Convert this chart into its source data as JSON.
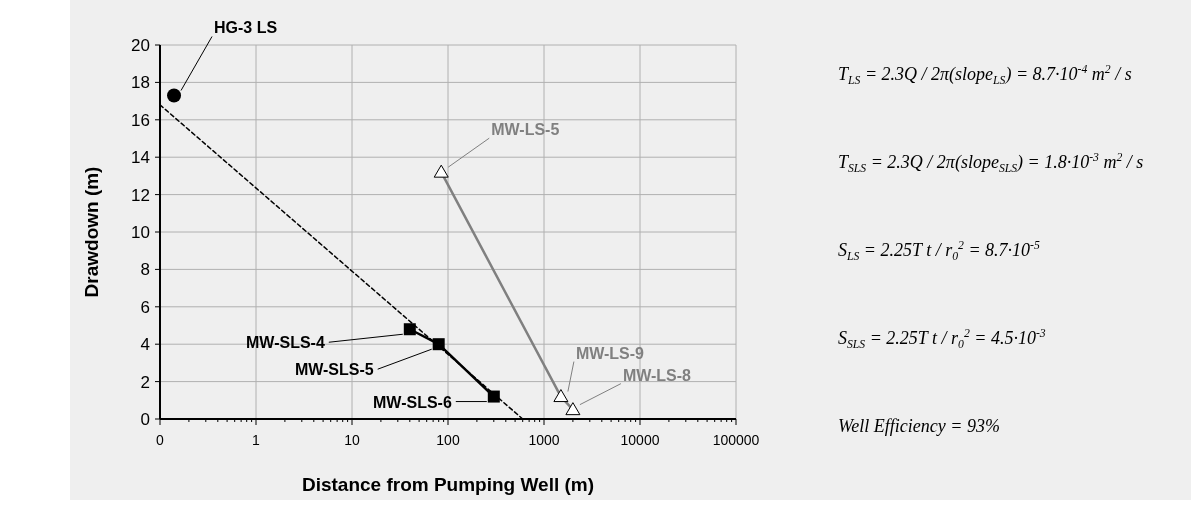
{
  "chart_data": {
    "type": "scatter",
    "xlabel": "Distance from Pumping Well  (m)",
    "ylabel": "Drawdown  (m)",
    "log": "x",
    "xlim": [
      0.1,
      100000
    ],
    "xticks": [
      {
        "value": 0.1,
        "label": "0"
      },
      1,
      10,
      100,
      1000,
      10000,
      100000
    ],
    "ylim": [
      0,
      20
    ],
    "yticks": [
      0,
      2,
      4,
      6,
      8,
      10,
      12,
      14,
      16,
      18,
      20
    ],
    "grid": true,
    "series": [
      {
        "color": "#000000",
        "marker": "circle",
        "x": [
          0.14
        ],
        "values": [
          17.3
        ]
      },
      {
        "type": "line",
        "color": "#000000",
        "marker": "none",
        "line_style": "dashed",
        "x": [
          0.1,
          600
        ],
        "values": [
          16.8,
          0
        ]
      },
      {
        "type": "line",
        "color": "#000000",
        "marker": "square",
        "line_style": "solid",
        "x": [
          40,
          80,
          300
        ],
        "values": [
          4.8,
          4.0,
          1.2
        ]
      },
      {
        "type": "line",
        "color": "#808080",
        "marker": "triangle",
        "line_style": "solid",
        "x": [
          85,
          1500,
          2000
        ],
        "values": [
          13.2,
          1.2,
          0.5
        ]
      }
    ],
    "annotations": [
      {
        "text": "HG-3 LS",
        "x": 0.14,
        "y": 17.3
      },
      {
        "text": "MW-SLS-4",
        "x": 40,
        "y": 4.8
      },
      {
        "text": "MW-SLS-5",
        "x": 80,
        "y": 4.0
      },
      {
        "text": "MW-SLS-6",
        "x": 300,
        "y": 1.2
      },
      {
        "text": "MW-LS-5",
        "x": 85,
        "y": 13.2
      },
      {
        "text": "MW-LS-9",
        "x": 1500,
        "y": 1.2
      },
      {
        "text": "MW-LS-8",
        "x": 2000,
        "y": 0.5
      },
      "T$_{LS}$ = 2.3Q / 2π(slope$_{LS}$) = 8.7·10$^{-4}$ m$^{2}$ / s",
      "T$_{SLS}$ = 2.3Q / 2π(slope$_{SLS}$) = 1.8·10$^{-3}$ m$^{2}$ / s",
      "S$_{LS}$ = 2.25T t / r$_{0}$$^{2}$ = 8.7·10$^{-5}$",
      "S$_{SLS}$ = 2.25T t / r$_{0}$$^{2}$ = 4.5·10$^{-3}$",
      "Well Efficiency = 93%"
    ]
  }
}
